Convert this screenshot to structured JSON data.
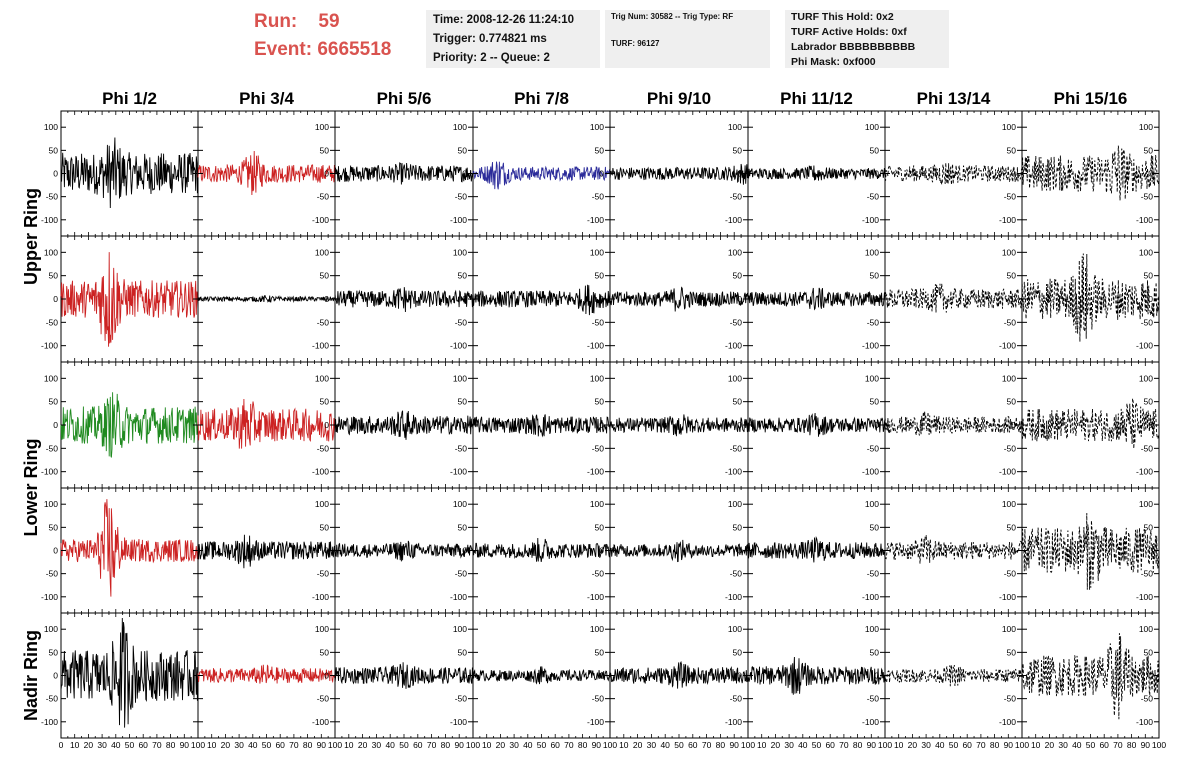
{
  "header": {
    "run_label": "Run:",
    "run_value": "59",
    "event_label": "Event:",
    "event_value": "6665518",
    "time_line": "Time: 2008-12-26 11:24:10",
    "trigger_line": "Trigger: 0.774821 ms",
    "priority_line": "Priority: 2 -- Queue: 2",
    "trig_num_line": "Trig Num: 30582 -- Trig Type: RF",
    "turf_line": "TURF: 96127",
    "turf_hold_line": "TURF This Hold: 0x2",
    "turf_active_line": "TURF Active Holds: 0xf",
    "labrador_line": "Labrador BBBBBBBBBB",
    "phi_mask_line": "Phi Mask: 0xf000"
  },
  "chart_data": {
    "type": "line",
    "columns": [
      "Phi 1/2",
      "Phi 3/4",
      "Phi 5/6",
      "Phi 7/8",
      "Phi 9/10",
      "Phi 11/12",
      "Phi 13/14",
      "Phi 15/16"
    ],
    "row_labels": [
      "Upper Ring",
      "Lower Ring",
      "Nadir Ring"
    ],
    "xlim": [
      0,
      100
    ],
    "ylim": [
      -135,
      135
    ],
    "y_ticks": [
      -100,
      -50,
      0,
      50,
      100
    ],
    "x_ticks": [
      0,
      10,
      20,
      30,
      40,
      50,
      60,
      70,
      80,
      90,
      100
    ],
    "colors": {
      "black": "#000000",
      "red": "#cc2222",
      "blue": "#2b2b9a",
      "green": "#1f8a1f"
    },
    "panels": [
      [
        {
          "color": "black",
          "amp": 45,
          "peak": 80,
          "peak_x": 38,
          "style": "solid"
        },
        {
          "color": "red",
          "amp": 20,
          "peak": 50,
          "peak_x": 40,
          "style": "solid"
        },
        {
          "color": "black",
          "amp": 18,
          "peak": 25,
          "peak_x": 50,
          "style": "solid"
        },
        {
          "color": "blue",
          "amp": 15,
          "peak": 38,
          "peak_x": 18,
          "style": "solid"
        },
        {
          "color": "black",
          "amp": 14,
          "peak": 25,
          "peak_x": 95,
          "style": "solid"
        },
        {
          "color": "black",
          "amp": 12,
          "peak": 20,
          "peak_x": 50,
          "style": "solid"
        },
        {
          "color": "black",
          "amp": 18,
          "peak": 30,
          "peak_x": 45,
          "style": "dashed"
        },
        {
          "color": "black",
          "amp": 40,
          "peak": 75,
          "peak_x": 70,
          "style": "dashed"
        }
      ],
      [
        {
          "color": "red",
          "amp": 40,
          "peak": 125,
          "peak_x": 35,
          "style": "solid"
        },
        {
          "color": "black",
          "amp": 5,
          "peak": 8,
          "peak_x": 50,
          "style": "solid"
        },
        {
          "color": "black",
          "amp": 18,
          "peak": 30,
          "peak_x": 50,
          "style": "solid"
        },
        {
          "color": "black",
          "amp": 18,
          "peak": 35,
          "peak_x": 85,
          "style": "solid"
        },
        {
          "color": "black",
          "amp": 16,
          "peak": 30,
          "peak_x": 50,
          "style": "solid"
        },
        {
          "color": "black",
          "amp": 16,
          "peak": 28,
          "peak_x": 50,
          "style": "solid"
        },
        {
          "color": "black",
          "amp": 22,
          "peak": 35,
          "peak_x": 40,
          "style": "dashed"
        },
        {
          "color": "black",
          "amp": 45,
          "peak": 110,
          "peak_x": 45,
          "style": "dashed"
        }
      ],
      [
        {
          "color": "green",
          "amp": 40,
          "peak": 75,
          "peak_x": 38,
          "style": "solid"
        },
        {
          "color": "red",
          "amp": 35,
          "peak": 65,
          "peak_x": 35,
          "style": "solid"
        },
        {
          "color": "black",
          "amp": 20,
          "peak": 35,
          "peak_x": 50,
          "style": "solid"
        },
        {
          "color": "black",
          "amp": 18,
          "peak": 28,
          "peak_x": 50,
          "style": "solid"
        },
        {
          "color": "black",
          "amp": 16,
          "peak": 28,
          "peak_x": 50,
          "style": "solid"
        },
        {
          "color": "black",
          "amp": 16,
          "peak": 28,
          "peak_x": 50,
          "style": "solid"
        },
        {
          "color": "black",
          "amp": 18,
          "peak": 30,
          "peak_x": 30,
          "style": "dashed"
        },
        {
          "color": "black",
          "amp": 35,
          "peak": 60,
          "peak_x": 80,
          "style": "dashed"
        }
      ],
      [
        {
          "color": "red",
          "amp": 25,
          "peak": 125,
          "peak_x": 35,
          "style": "solid"
        },
        {
          "color": "black",
          "amp": 20,
          "peak": 40,
          "peak_x": 35,
          "style": "solid"
        },
        {
          "color": "black",
          "amp": 15,
          "peak": 25,
          "peak_x": 50,
          "style": "solid"
        },
        {
          "color": "black",
          "amp": 16,
          "peak": 30,
          "peak_x": 50,
          "style": "solid"
        },
        {
          "color": "black",
          "amp": 14,
          "peak": 25,
          "peak_x": 50,
          "style": "solid"
        },
        {
          "color": "black",
          "amp": 18,
          "peak": 30,
          "peak_x": 50,
          "style": "solid"
        },
        {
          "color": "black",
          "amp": 20,
          "peak": 35,
          "peak_x": 30,
          "style": "dashed"
        },
        {
          "color": "black",
          "amp": 50,
          "peak": 90,
          "peak_x": 50,
          "style": "dashed"
        }
      ],
      [
        {
          "color": "black",
          "amp": 55,
          "peak": 130,
          "peak_x": 45,
          "style": "solid"
        },
        {
          "color": "red",
          "amp": 16,
          "peak": 25,
          "peak_x": 50,
          "style": "solid"
        },
        {
          "color": "black",
          "amp": 18,
          "peak": 30,
          "peak_x": 50,
          "style": "solid"
        },
        {
          "color": "black",
          "amp": 12,
          "peak": 20,
          "peak_x": 50,
          "style": "solid"
        },
        {
          "color": "black",
          "amp": 18,
          "peak": 30,
          "peak_x": 50,
          "style": "solid"
        },
        {
          "color": "black",
          "amp": 20,
          "peak": 45,
          "peak_x": 35,
          "style": "solid"
        },
        {
          "color": "black",
          "amp": 15,
          "peak": 25,
          "peak_x": 50,
          "style": "dashed"
        },
        {
          "color": "black",
          "amp": 45,
          "peak": 105,
          "peak_x": 70,
          "style": "dashed"
        }
      ]
    ]
  }
}
